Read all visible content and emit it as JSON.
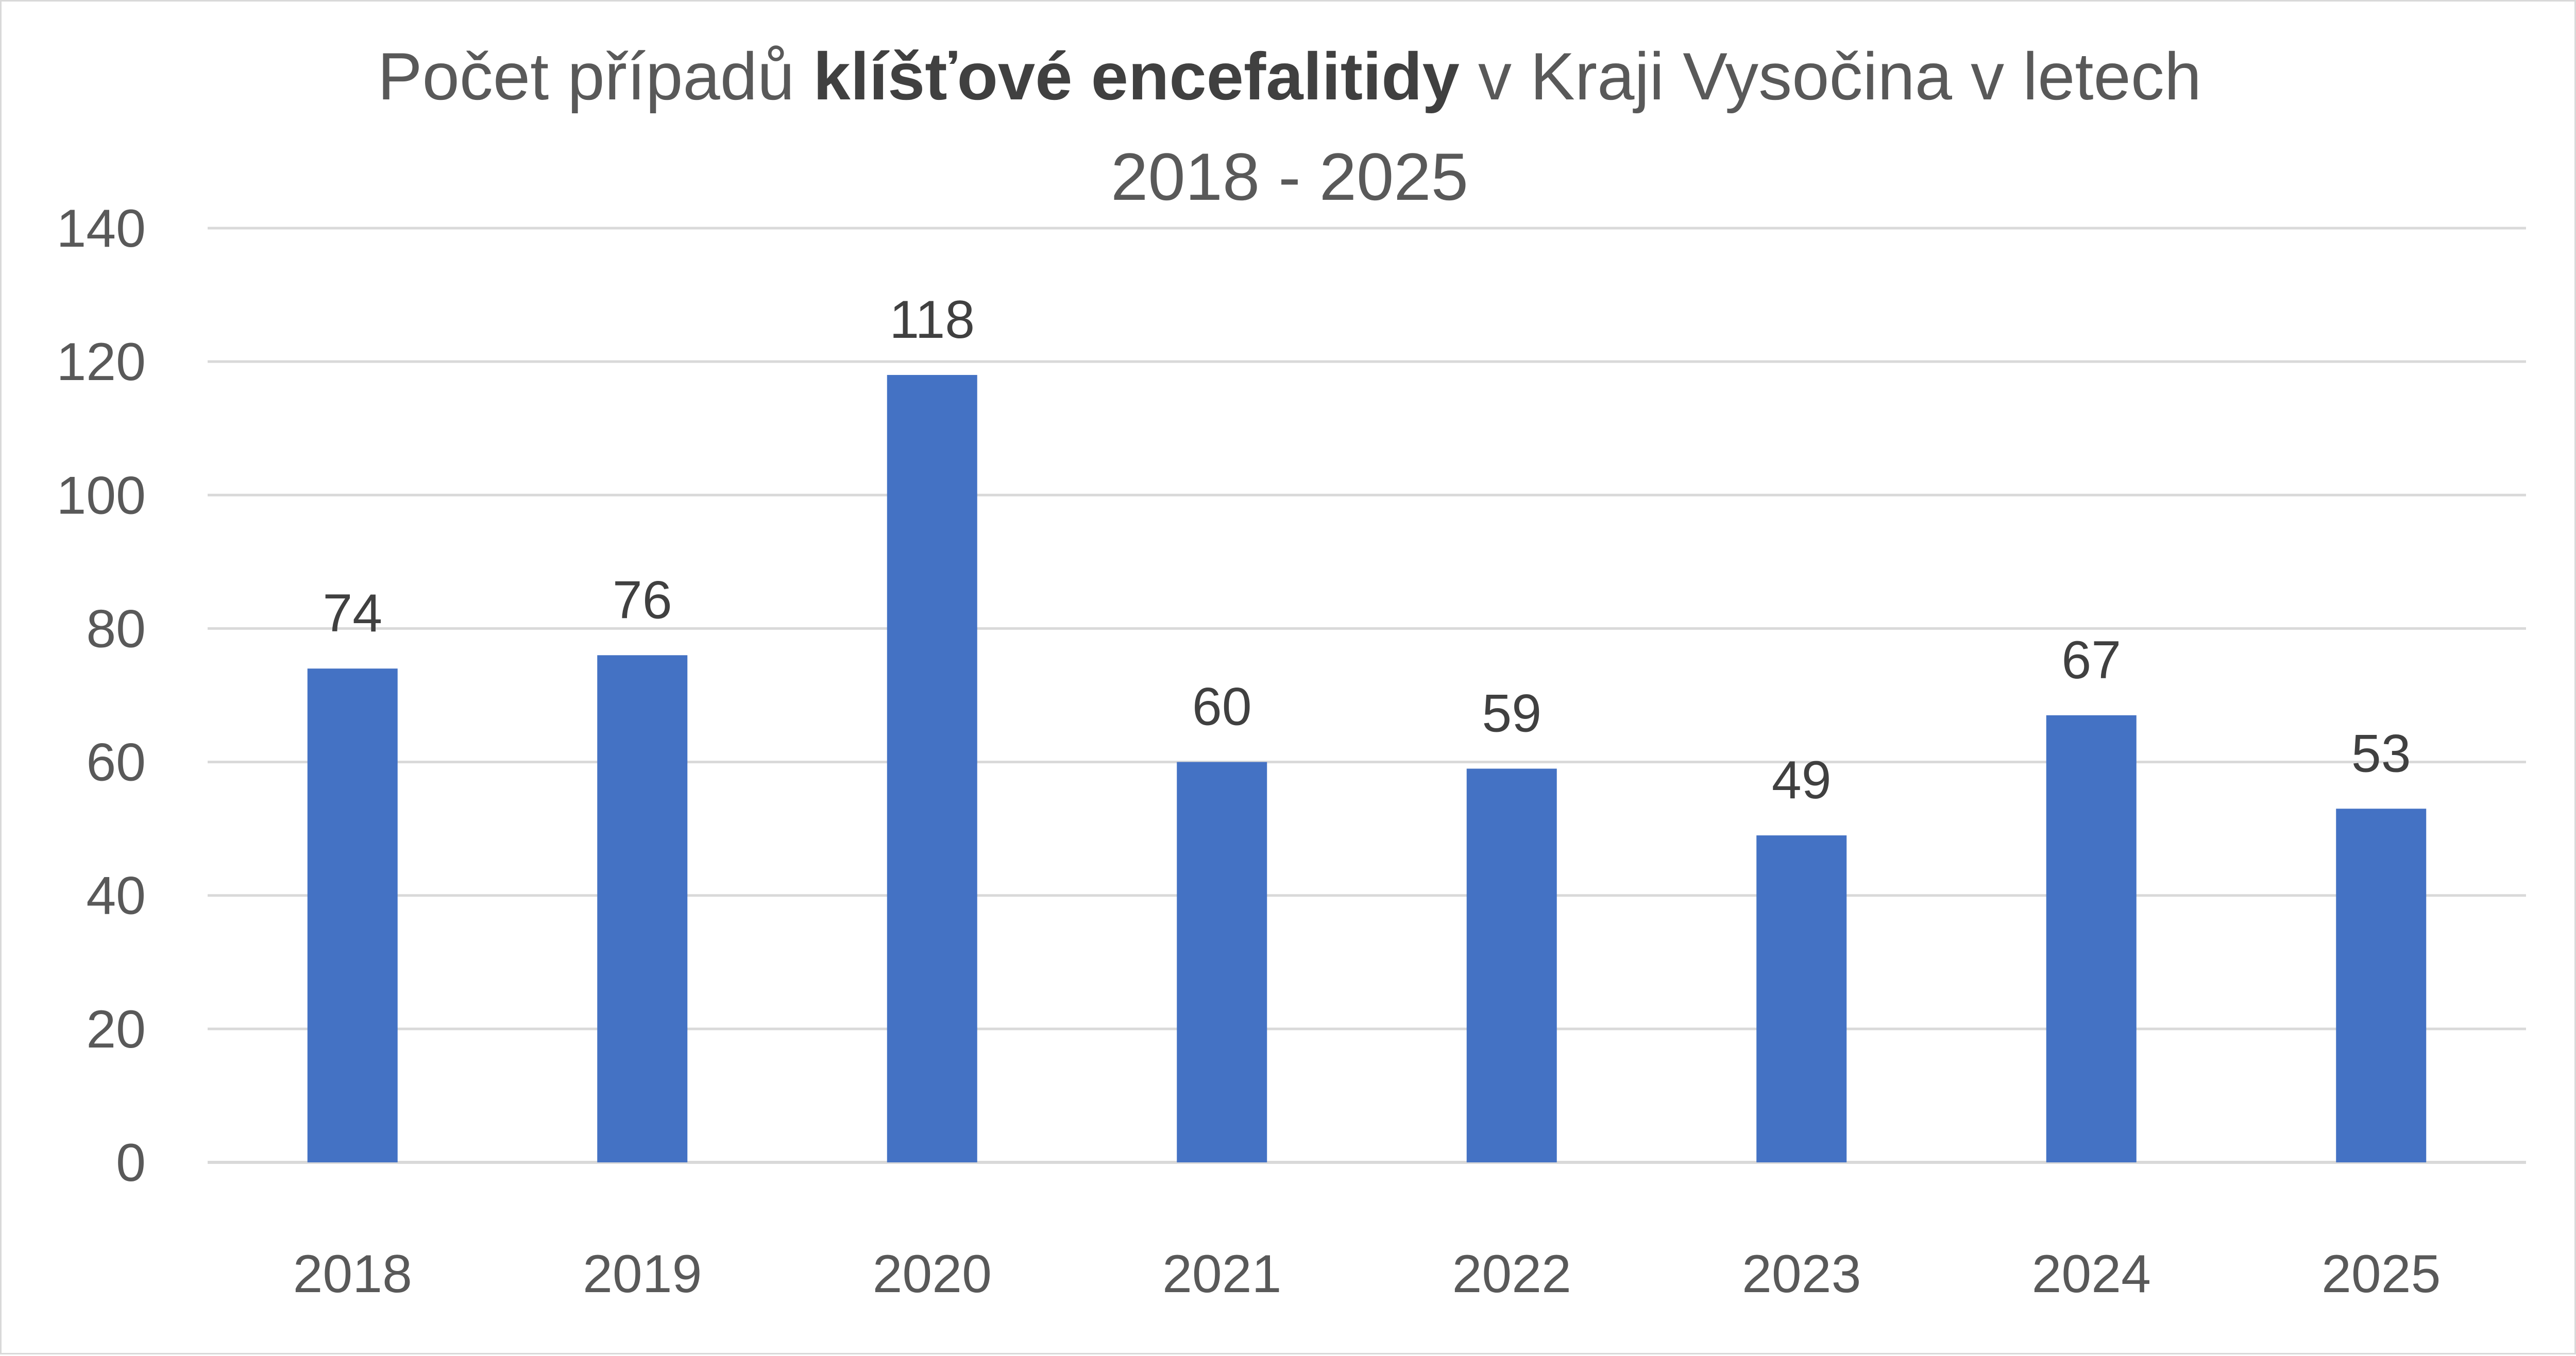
{
  "chart_data": {
    "type": "bar",
    "title": {
      "part1": "Počet případů ",
      "part2_bold": "klíšťové encefalitidy",
      "part3": " v Kraji Vysočina v letech",
      "line2": "2018 - 2025"
    },
    "categories": [
      "2018",
      "2019",
      "2020",
      "2021",
      "2022",
      "2023",
      "2024",
      "2025"
    ],
    "values": [
      74,
      76,
      118,
      60,
      59,
      49,
      67,
      53
    ],
    "data_labels": [
      "74",
      "76",
      "118",
      "60",
      "59",
      "49",
      "67",
      "53"
    ],
    "y_ticks": [
      "0",
      "20",
      "40",
      "60",
      "80",
      "100",
      "120",
      "140"
    ],
    "ylim": [
      0,
      140
    ],
    "xlabel": "",
    "ylabel": "",
    "grid": true,
    "legend": "none",
    "colors": {
      "bar": "#4472c4",
      "grid": "#d9d9d9"
    }
  }
}
